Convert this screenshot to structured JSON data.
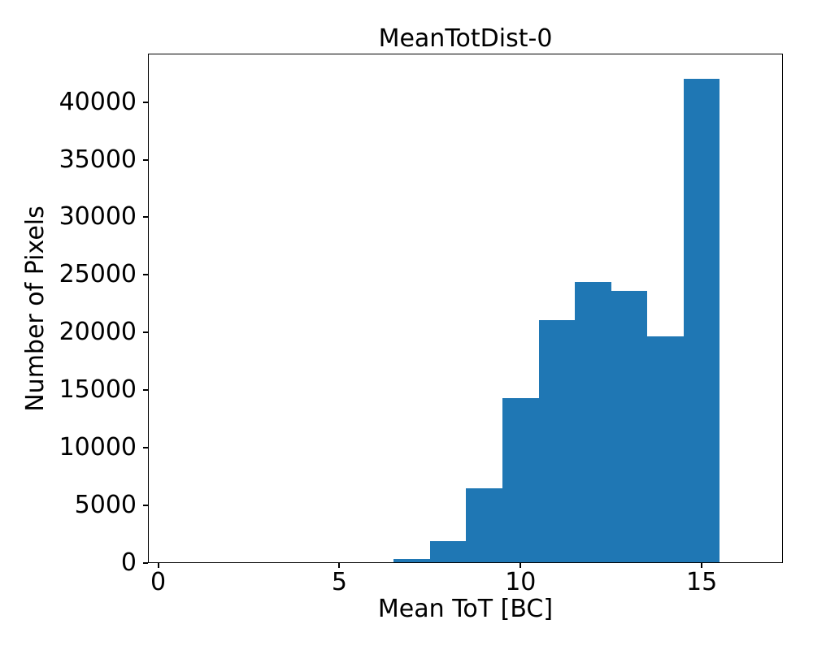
{
  "figure": {
    "title": "MeanTotDist-0",
    "xlabel": "Mean ToT [BC]",
    "ylabel": "Number of Pixels",
    "background_color": "#ffffff",
    "text_color": "#000000"
  },
  "chart_data": {
    "type": "bar",
    "subtype": "histogram",
    "title": "MeanTotDist-0",
    "xlabel": "Mean ToT [BC]",
    "ylabel": "Number of Pixels",
    "bin_edges": [
      5.5,
      6.5,
      7.5,
      8.5,
      9.5,
      10.5,
      11.5,
      12.5,
      13.5,
      14.5,
      15.5
    ],
    "counts": [
      100,
      350,
      1900,
      6500,
      14300,
      21100,
      24400,
      23600,
      19700,
      42000
    ],
    "bar_color": "#1f77b4",
    "xticks": [
      0,
      5,
      10,
      15
    ],
    "yticks": [
      0,
      5000,
      10000,
      15000,
      20000,
      25000,
      30000,
      35000,
      40000
    ],
    "xlim": [
      -0.28,
      17.24
    ],
    "ylim": [
      0,
      44200
    ],
    "grid": false,
    "legend_position": "none"
  }
}
